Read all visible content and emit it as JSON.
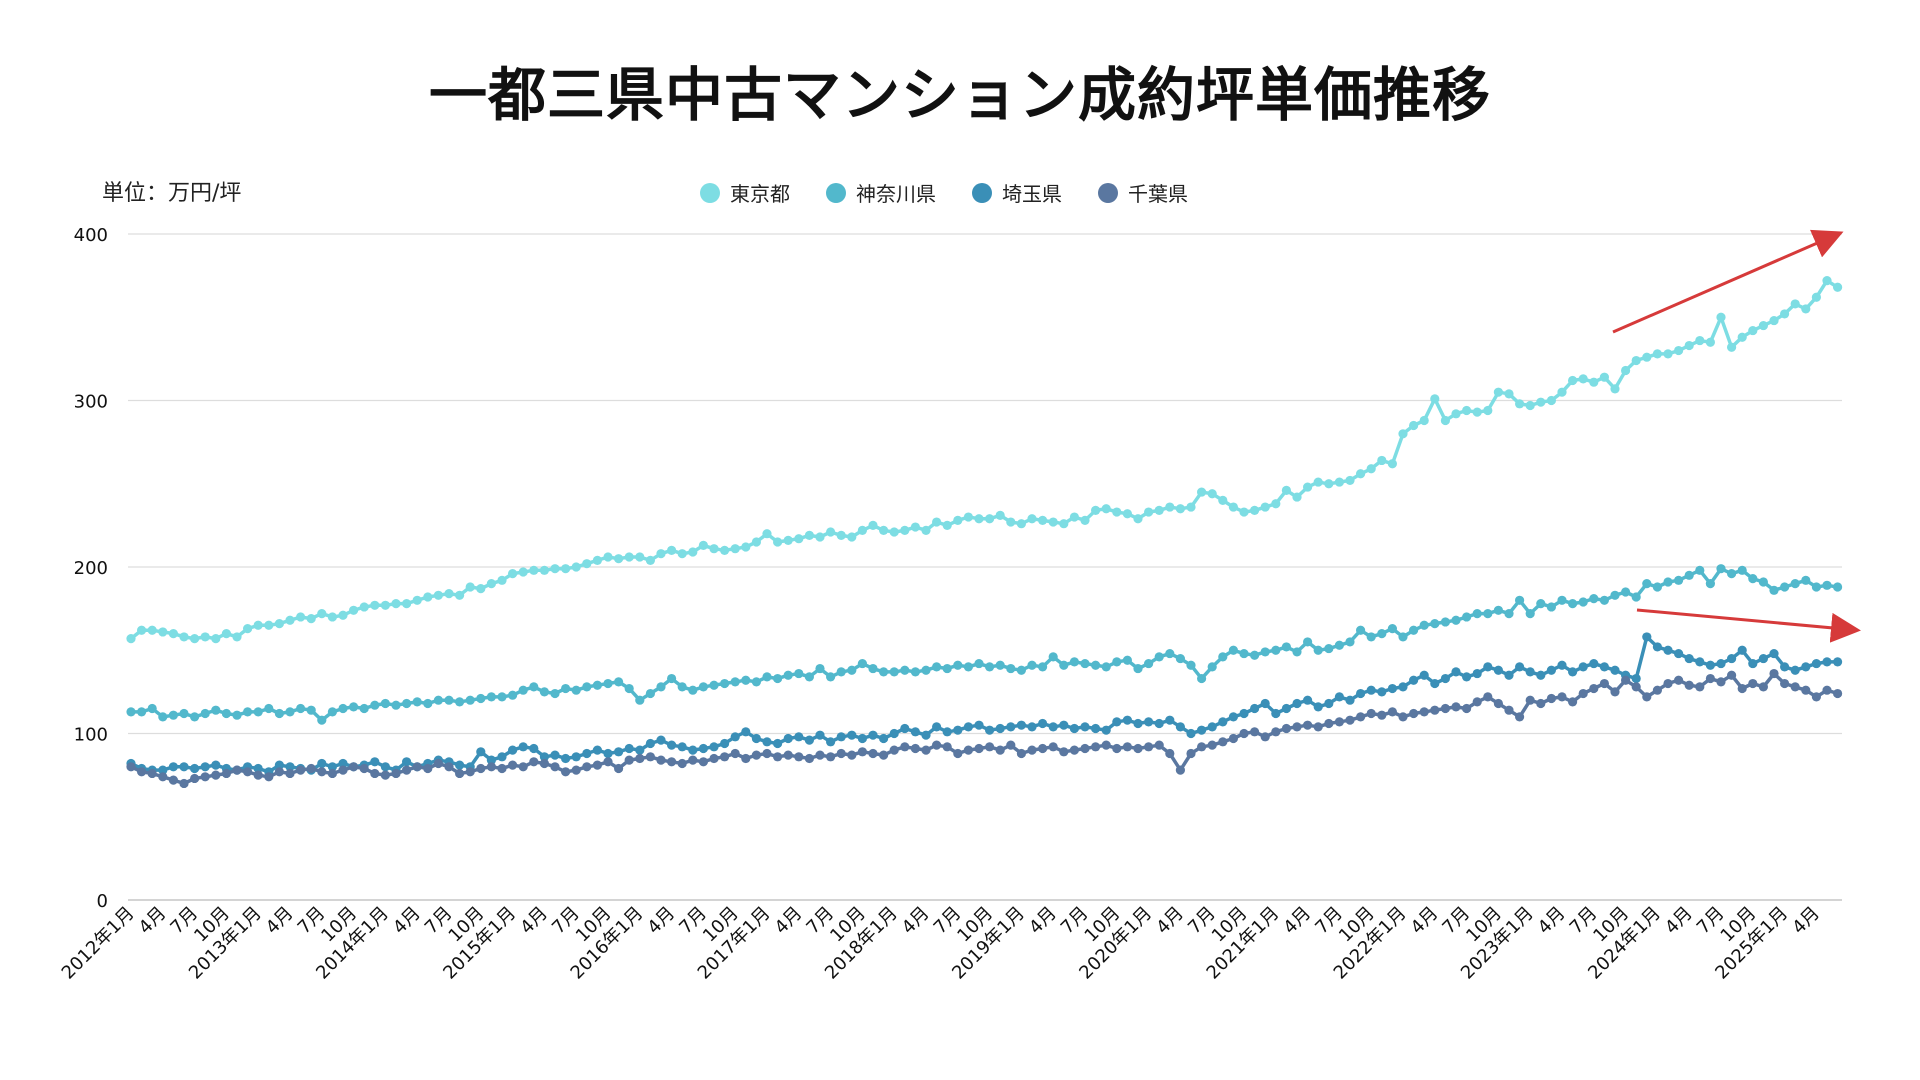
{
  "chart_data": {
    "type": "line",
    "title": "一都三県中古マンション成約坪単価推移",
    "unit_label": "単位：万円/坪",
    "ylim": [
      0,
      400
    ],
    "y_ticks": [
      "0",
      "100",
      "200",
      "300",
      "400"
    ],
    "grid": true,
    "legend_position": "top",
    "x_start": "2012-01",
    "x_end": "2025-06",
    "x_tick_labels": [
      "2012年1月",
      "4月",
      "7月",
      "10月",
      "2013年1月",
      "4月",
      "7月",
      "10月",
      "2014年1月",
      "4月",
      "7月",
      "10月",
      "2015年1月",
      "4月",
      "7月",
      "10月",
      "2016年1月",
      "4月",
      "7月",
      "10月",
      "2017年1月",
      "4月",
      "7月",
      "10月",
      "2018年1月",
      "4月",
      "7月",
      "10月",
      "2019年1月",
      "4月",
      "7月",
      "10月",
      "2020年1月",
      "4月",
      "7月",
      "10月",
      "2021年1月",
      "4月",
      "7月",
      "10月",
      "2022年1月",
      "4月",
      "7月",
      "10月",
      "2023年1月",
      "4月",
      "7月",
      "10月",
      "2024年1月",
      "4月",
      "7月",
      "10月",
      "2025年1月",
      "4月"
    ],
    "series": [
      {
        "name": "東京都",
        "color": "#7ddde3",
        "values": [
          157,
          162,
          162,
          161,
          160,
          158,
          157,
          158,
          157,
          160,
          158,
          163,
          165,
          165,
          166,
          168,
          170,
          169,
          172,
          170,
          171,
          174,
          176,
          177,
          177,
          178,
          178,
          180,
          182,
          183,
          184,
          183,
          188,
          187,
          190,
          192,
          196,
          197,
          198,
          198,
          199,
          199,
          200,
          202,
          204,
          206,
          205,
          206,
          206,
          204,
          208,
          210,
          208,
          209,
          213,
          211,
          210,
          211,
          212,
          215,
          220,
          215,
          216,
          217,
          219,
          218,
          221,
          219,
          218,
          222,
          225,
          222,
          221,
          222,
          224,
          222,
          227,
          225,
          228,
          230,
          229,
          229,
          231,
          227,
          226,
          229,
          228,
          227,
          226,
          230,
          228,
          234,
          235,
          233,
          232,
          229,
          233,
          234,
          236,
          235,
          236,
          245,
          244,
          240,
          236,
          233,
          234,
          236,
          238,
          246,
          242,
          248,
          251,
          250,
          251,
          252,
          256,
          259,
          264,
          262,
          280,
          285,
          288,
          301,
          288,
          292,
          294,
          293,
          294,
          305,
          304,
          298,
          297,
          299,
          300,
          305,
          312,
          313,
          311,
          314,
          307,
          318,
          324,
          326,
          328,
          328,
          330,
          333,
          336,
          335,
          350,
          332,
          338,
          342,
          345,
          348,
          352,
          358,
          355,
          362,
          372,
          368
        ]
      },
      {
        "name": "神奈川県",
        "color": "#52b8cc",
        "values": [
          113,
          113,
          115,
          110,
          111,
          112,
          110,
          112,
          114,
          112,
          111,
          113,
          113,
          115,
          112,
          113,
          115,
          114,
          108,
          113,
          115,
          116,
          115,
          117,
          118,
          117,
          118,
          119,
          118,
          120,
          120,
          119,
          120,
          121,
          122,
          122,
          123,
          126,
          128,
          125,
          124,
          127,
          126,
          128,
          129,
          130,
          131,
          127,
          120,
          124,
          128,
          133,
          128,
          126,
          128,
          129,
          130,
          131,
          132,
          131,
          134,
          133,
          135,
          136,
          134,
          139,
          134,
          137,
          138,
          142,
          139,
          137,
          137,
          138,
          137,
          138,
          140,
          139,
          141,
          140,
          142,
          140,
          141,
          139,
          138,
          141,
          140,
          146,
          141,
          143,
          142,
          141,
          140,
          143,
          144,
          139,
          142,
          146,
          148,
          145,
          141,
          133,
          140,
          146,
          150,
          148,
          147,
          149,
          150,
          152,
          149,
          155,
          150,
          151,
          153,
          155,
          162,
          158,
          160,
          163,
          158,
          162,
          165,
          166,
          167,
          168,
          170,
          172,
          172,
          174,
          172,
          180,
          172,
          178,
          176,
          180,
          178,
          179,
          181,
          180,
          183,
          185,
          182,
          190,
          188,
          191,
          192,
          195,
          198,
          190,
          199,
          196,
          198,
          193,
          191,
          186,
          188,
          190,
          192,
          188,
          189,
          188
        ]
      },
      {
        "name": "埼玉県",
        "color": "#3a8fb7",
        "values": [
          82,
          79,
          78,
          78,
          80,
          80,
          79,
          80,
          81,
          79,
          78,
          80,
          79,
          77,
          81,
          80,
          79,
          78,
          82,
          80,
          82,
          80,
          81,
          83,
          80,
          78,
          83,
          80,
          82,
          84,
          83,
          81,
          80,
          89,
          84,
          86,
          90,
          92,
          91,
          86,
          87,
          85,
          86,
          88,
          90,
          88,
          89,
          91,
          90,
          94,
          96,
          93,
          92,
          90,
          91,
          92,
          94,
          98,
          101,
          97,
          95,
          94,
          97,
          98,
          96,
          99,
          95,
          98,
          99,
          97,
          99,
          97,
          100,
          103,
          101,
          99,
          104,
          101,
          102,
          104,
          105,
          102,
          103,
          104,
          105,
          104,
          106,
          104,
          105,
          103,
          104,
          103,
          102,
          107,
          108,
          106,
          107,
          106,
          108,
          104,
          100,
          102,
          104,
          107,
          110,
          112,
          115,
          118,
          112,
          115,
          118,
          120,
          116,
          118,
          122,
          120,
          124,
          126,
          125,
          127,
          128,
          132,
          135,
          130,
          133,
          137,
          134,
          136,
          140,
          138,
          135,
          140,
          137,
          135,
          138,
          141,
          137,
          140,
          142,
          140,
          138,
          135,
          133,
          158,
          152,
          150,
          148,
          145,
          143,
          141,
          142,
          145,
          150,
          142,
          145,
          148,
          140,
          138,
          140,
          142,
          143,
          143
        ]
      },
      {
        "name": "千葉県",
        "color": "#5a77a0",
        "values": [
          80,
          77,
          76,
          74,
          72,
          70,
          73,
          74,
          75,
          76,
          78,
          77,
          75,
          74,
          77,
          76,
          78,
          79,
          77,
          76,
          78,
          80,
          79,
          76,
          75,
          76,
          78,
          80,
          79,
          82,
          80,
          76,
          77,
          79,
          80,
          79,
          81,
          80,
          83,
          82,
          80,
          77,
          78,
          80,
          81,
          83,
          79,
          84,
          85,
          86,
          84,
          83,
          82,
          84,
          83,
          85,
          86,
          88,
          85,
          87,
          88,
          86,
          87,
          86,
          85,
          87,
          86,
          88,
          87,
          89,
          88,
          87,
          90,
          92,
          91,
          90,
          93,
          92,
          88,
          90,
          91,
          92,
          90,
          93,
          88,
          90,
          91,
          92,
          89,
          90,
          91,
          92,
          93,
          91,
          92,
          91,
          92,
          93,
          88,
          78,
          88,
          92,
          93,
          95,
          97,
          100,
          101,
          98,
          101,
          103,
          104,
          105,
          104,
          106,
          107,
          108,
          110,
          112,
          111,
          113,
          110,
          112,
          113,
          114,
          115,
          116,
          115,
          119,
          122,
          118,
          114,
          110,
          120,
          118,
          121,
          122,
          119,
          124,
          127,
          130,
          125,
          132,
          128,
          122,
          126,
          130,
          132,
          129,
          128,
          133,
          131,
          135,
          127,
          130,
          128,
          136,
          130,
          128,
          126,
          122,
          126,
          124
        ]
      }
    ],
    "annotations": [
      {
        "type": "arrow",
        "color": "#d63a3a",
        "direction": "up-right"
      },
      {
        "type": "arrow",
        "color": "#d63a3a",
        "direction": "slightly-down-right"
      }
    ]
  }
}
